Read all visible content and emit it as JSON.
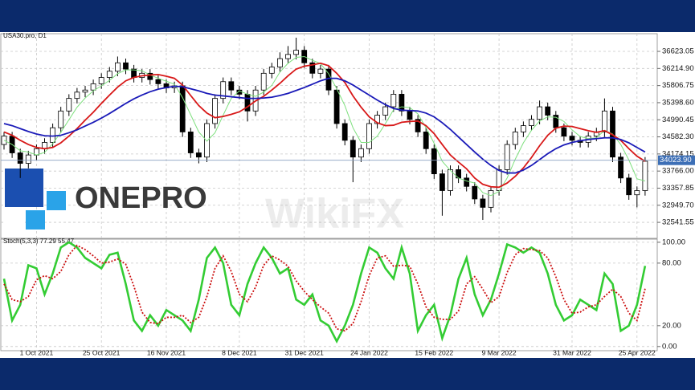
{
  "chart_data": [
    {
      "type": "candlestick",
      "title": "USA30.pro, D1",
      "ohlc": [
        [
          34400,
          34700,
          34280,
          34600
        ],
        [
          34600,
          34700,
          34080,
          34200
        ],
        [
          34200,
          34300,
          33600,
          33950
        ],
        [
          33950,
          34250,
          33830,
          34150
        ],
        [
          34150,
          34400,
          34030,
          34300
        ],
        [
          34300,
          34550,
          34180,
          34450
        ],
        [
          34450,
          34900,
          34330,
          34800
        ],
        [
          34800,
          35300,
          34680,
          35200
        ],
        [
          35200,
          35600,
          35080,
          35500
        ],
        [
          35500,
          35750,
          35380,
          35650
        ],
        [
          35650,
          35800,
          35530,
          35700
        ],
        [
          35700,
          35950,
          35580,
          35850
        ],
        [
          35850,
          36100,
          35730,
          36000
        ],
        [
          36000,
          36250,
          35880,
          36150
        ],
        [
          36150,
          36500,
          36030,
          36350
        ],
        [
          36350,
          36450,
          36080,
          36200
        ],
        [
          36200,
          36300,
          35880,
          36000
        ],
        [
          36000,
          36200,
          35880,
          36100
        ],
        [
          36100,
          36200,
          35830,
          35950
        ],
        [
          35950,
          36050,
          35730,
          35850
        ],
        [
          35850,
          35950,
          35630,
          35750
        ],
        [
          35750,
          35900,
          35630,
          35800
        ],
        [
          35800,
          35900,
          34580,
          34700
        ],
        [
          34700,
          34800,
          34080,
          34200
        ],
        [
          34200,
          34300,
          33950,
          34100
        ],
        [
          34100,
          35000,
          33980,
          34900
        ],
        [
          34900,
          35600,
          34780,
          35500
        ],
        [
          35500,
          36000,
          35380,
          35900
        ],
        [
          35900,
          36000,
          35580,
          35700
        ],
        [
          35700,
          35800,
          35480,
          35600
        ],
        [
          35600,
          35700,
          34950,
          35200
        ],
        [
          35200,
          35800,
          35080,
          35700
        ],
        [
          35700,
          36200,
          35580,
          36100
        ],
        [
          36100,
          36350,
          35980,
          36250
        ],
        [
          36250,
          36600,
          36130,
          36450
        ],
        [
          36450,
          36750,
          36330,
          36550
        ],
        [
          36550,
          36950,
          36430,
          36650
        ],
        [
          36650,
          36750,
          36230,
          36350
        ],
        [
          36350,
          36450,
          35980,
          36100
        ],
        [
          36100,
          36300,
          35980,
          36200
        ],
        [
          36200,
          36300,
          35580,
          35700
        ],
        [
          35700,
          35800,
          34780,
          34900
        ],
        [
          34900,
          35000,
          34380,
          34500
        ],
        [
          34500,
          34600,
          33500,
          34100
        ],
        [
          34100,
          34400,
          33980,
          34300
        ],
        [
          34300,
          35000,
          34180,
          34900
        ],
        [
          34900,
          35200,
          34780,
          35100
        ],
        [
          35100,
          35400,
          34980,
          35300
        ],
        [
          35300,
          35700,
          35180,
          35600
        ],
        [
          35600,
          35700,
          35080,
          35200
        ],
        [
          35200,
          35300,
          34880,
          35000
        ],
        [
          35000,
          35100,
          34580,
          34700
        ],
        [
          34700,
          34800,
          34180,
          34300
        ],
        [
          34300,
          34400,
          33580,
          33700
        ],
        [
          33700,
          33800,
          32700,
          33300
        ],
        [
          33300,
          33900,
          33180,
          33800
        ],
        [
          33800,
          33900,
          33480,
          33600
        ],
        [
          33600,
          33700,
          33280,
          33400
        ],
        [
          33400,
          33500,
          32980,
          33100
        ],
        [
          33100,
          33200,
          32600,
          32900
        ],
        [
          32900,
          33400,
          32780,
          33300
        ],
        [
          33300,
          33900,
          33180,
          33800
        ],
        [
          33800,
          34500,
          33680,
          34400
        ],
        [
          34400,
          34800,
          34280,
          34700
        ],
        [
          34700,
          34950,
          34580,
          34850
        ],
        [
          34850,
          35100,
          34730,
          35000
        ],
        [
          35000,
          35450,
          34880,
          35300
        ],
        [
          35300,
          35400,
          34980,
          35100
        ],
        [
          35100,
          35200,
          34680,
          34800
        ],
        [
          34800,
          34900,
          34480,
          34600
        ],
        [
          34600,
          34700,
          34380,
          34500
        ],
        [
          34500,
          34600,
          34330,
          34450
        ],
        [
          34450,
          34700,
          34330,
          34600
        ],
        [
          34600,
          34800,
          34480,
          34700
        ],
        [
          34700,
          35500,
          34580,
          35200
        ],
        [
          35200,
          35300,
          33980,
          34100
        ],
        [
          34100,
          34200,
          33480,
          33600
        ],
        [
          33600,
          33700,
          33080,
          33200
        ],
        [
          33200,
          33400,
          32900,
          33300
        ],
        [
          33300,
          34100,
          33180,
          34000
        ]
      ],
      "overlays": [
        {
          "color": "#7ee07e",
          "values": [
            34500,
            34400,
            34250,
            34220,
            34150,
            34210,
            34420,
            34690,
            34990,
            35290,
            35510,
            35680,
            35800,
            35930,
            36090,
            36180,
            36180,
            36160,
            36060,
            35980,
            35910,
            35840,
            35520,
            35110,
            34700,
            34480,
            34680,
            35100,
            35500,
            35680,
            35600,
            35550,
            35650,
            35810,
            36130,
            36340,
            36480,
            36500,
            36410,
            36330,
            36090,
            35730,
            35330,
            34800,
            34450,
            34450,
            34600,
            34900,
            35230,
            35300,
            35280,
            35130,
            34800,
            34430,
            34000,
            33780,
            33600,
            33530,
            33480,
            33250,
            33180,
            33280,
            33600,
            34050,
            34440,
            34740,
            34960,
            35060,
            35050,
            34950,
            34750,
            34590,
            34540,
            34560,
            34740,
            34650,
            34400,
            34030,
            33580,
            33530
          ]
        },
        {
          "color": "#d81818",
          "values": [
            34700,
            34620,
            34500,
            34400,
            34330,
            34300,
            34330,
            34440,
            34600,
            34780,
            34980,
            35170,
            35380,
            35580,
            35770,
            35920,
            36000,
            36040,
            36060,
            36070,
            36030,
            35980,
            35820,
            35570,
            35330,
            35150,
            35040,
            35070,
            35120,
            35180,
            35300,
            35440,
            35550,
            35700,
            35860,
            36040,
            36200,
            36270,
            36300,
            36340,
            36280,
            36100,
            35880,
            35560,
            35290,
            35060,
            34920,
            34850,
            34860,
            34930,
            34950,
            34960,
            34850,
            34660,
            34400,
            34150,
            33980,
            33820,
            33600,
            33450,
            33390,
            33380,
            33480,
            33640,
            33840,
            34090,
            34370,
            34620,
            34790,
            34840,
            34830,
            34780,
            34730,
            34690,
            34730,
            34630,
            34500,
            34300,
            34120,
            34000
          ]
        },
        {
          "color": "#1a1ab8",
          "values": [
            34900,
            34850,
            34780,
            34710,
            34650,
            34610,
            34600,
            34620,
            34680,
            34750,
            34840,
            34930,
            35030,
            35140,
            35260,
            35380,
            35490,
            35580,
            35660,
            35720,
            35760,
            35790,
            35780,
            35730,
            35680,
            35620,
            35580,
            35560,
            35540,
            35520,
            35500,
            35500,
            35510,
            35530,
            35570,
            35620,
            35690,
            35760,
            35840,
            35920,
            35980,
            35980,
            35920,
            35820,
            35700,
            35580,
            35460,
            35350,
            35260,
            35220,
            35210,
            35200,
            35150,
            35060,
            34920,
            34760,
            34580,
            34400,
            34220,
            34050,
            33900,
            33780,
            33720,
            33720,
            33790,
            33900,
            34040,
            34180,
            34300,
            34390,
            34450,
            34490,
            34520,
            34540,
            34560,
            34560,
            34520,
            34440,
            34330,
            34220
          ]
        }
      ],
      "last_price": {
        "value": 34023.9,
        "label": "34023.90"
      },
      "ylim": [
        32160,
        37045
      ],
      "yticks": [
        36623.05,
        {
          "value": 36214.9,
          "label": "36214.90"
        },
        35806.75,
        {
          "value": 35398.6,
          "label": "35398.60"
        },
        34990.45,
        {
          "value": 34582.3,
          "label": "34582.30"
        },
        34174.15,
        {
          "value": 33766,
          "label": "33766.00"
        },
        33357.85,
        {
          "value": 32949.7,
          "label": "32949.70"
        },
        32541.55
      ],
      "grid": true,
      "logo": "ONEPRO",
      "watermark": "WikiFX"
    },
    {
      "type": "line",
      "title": "Stoch(5,3,3) 77.29 55.47",
      "categories": [
        null,
        null,
        null,
        null,
        "1 Oct 2021",
        null,
        null,
        null,
        null,
        null,
        null,
        null,
        "25 Oct 2021",
        null,
        null,
        null,
        null,
        null,
        null,
        null,
        "16 Nov 2021",
        null,
        null,
        null,
        null,
        null,
        null,
        null,
        null,
        "8 Dec 2021",
        null,
        null,
        null,
        null,
        null,
        null,
        null,
        "31 Dec 2021",
        null,
        null,
        null,
        null,
        null,
        null,
        null,
        "24 Jan 2022",
        null,
        null,
        null,
        null,
        null,
        null,
        null,
        "15 Feb 2022",
        null,
        null,
        null,
        null,
        null,
        null,
        null,
        "9 Mar 2022",
        null,
        null,
        null,
        null,
        null,
        null,
        null,
        null,
        "31 Mar 2022",
        null,
        null,
        null,
        null,
        null,
        null,
        null,
        "25 Apr 2022",
        null
      ],
      "series": [
        {
          "color": "#33cc33",
          "values": [
            65,
            25,
            40,
            78,
            75,
            50,
            70,
            95,
            100,
            95,
            85,
            80,
            75,
            88,
            90,
            60,
            25,
            15,
            30,
            20,
            35,
            30,
            25,
            15,
            45,
            85,
            95,
            80,
            40,
            30,
            60,
            80,
            95,
            85,
            70,
            75,
            45,
            40,
            50,
            25,
            20,
            5,
            20,
            40,
            70,
            95,
            90,
            75,
            65,
            95,
            70,
            15,
            30,
            40,
            8,
            30,
            65,
            85,
            50,
            30,
            45,
            70,
            98,
            95,
            90,
            95,
            90,
            70,
            40,
            25,
            30,
            45,
            40,
            35,
            70,
            60,
            15,
            20,
            40,
            77.29
          ]
        },
        {
          "color": "#cc1111",
          "dashed": true,
          "values": [
            60,
            45,
            43,
            48,
            64,
            68,
            65,
            72,
            88,
            97,
            93,
            87,
            80,
            81,
            84,
            79,
            58,
            33,
            23,
            22,
            28,
            28,
            30,
            23,
            28,
            48,
            75,
            87,
            72,
            50,
            43,
            57,
            78,
            87,
            83,
            77,
            63,
            53,
            45,
            38,
            32,
            17,
            15,
            22,
            43,
            68,
            85,
            87,
            77,
            78,
            77,
            60,
            38,
            28,
            26,
            26,
            34,
            60,
            67,
            55,
            42,
            48,
            71,
            88,
            94,
            93,
            92,
            85,
            67,
            45,
            32,
            33,
            38,
            40,
            48,
            55,
            48,
            32,
            25,
            55.47
          ]
        }
      ],
      "ylim": [
        -4,
        103
      ],
      "yticks": [
        {
          "value": 100,
          "label": "100.00"
        },
        {
          "value": 80,
          "label": "80.00"
        },
        {
          "value": 20,
          "label": "20.00"
        },
        {
          "value": 0,
          "label": "0.00"
        }
      ],
      "grid": true
    }
  ]
}
